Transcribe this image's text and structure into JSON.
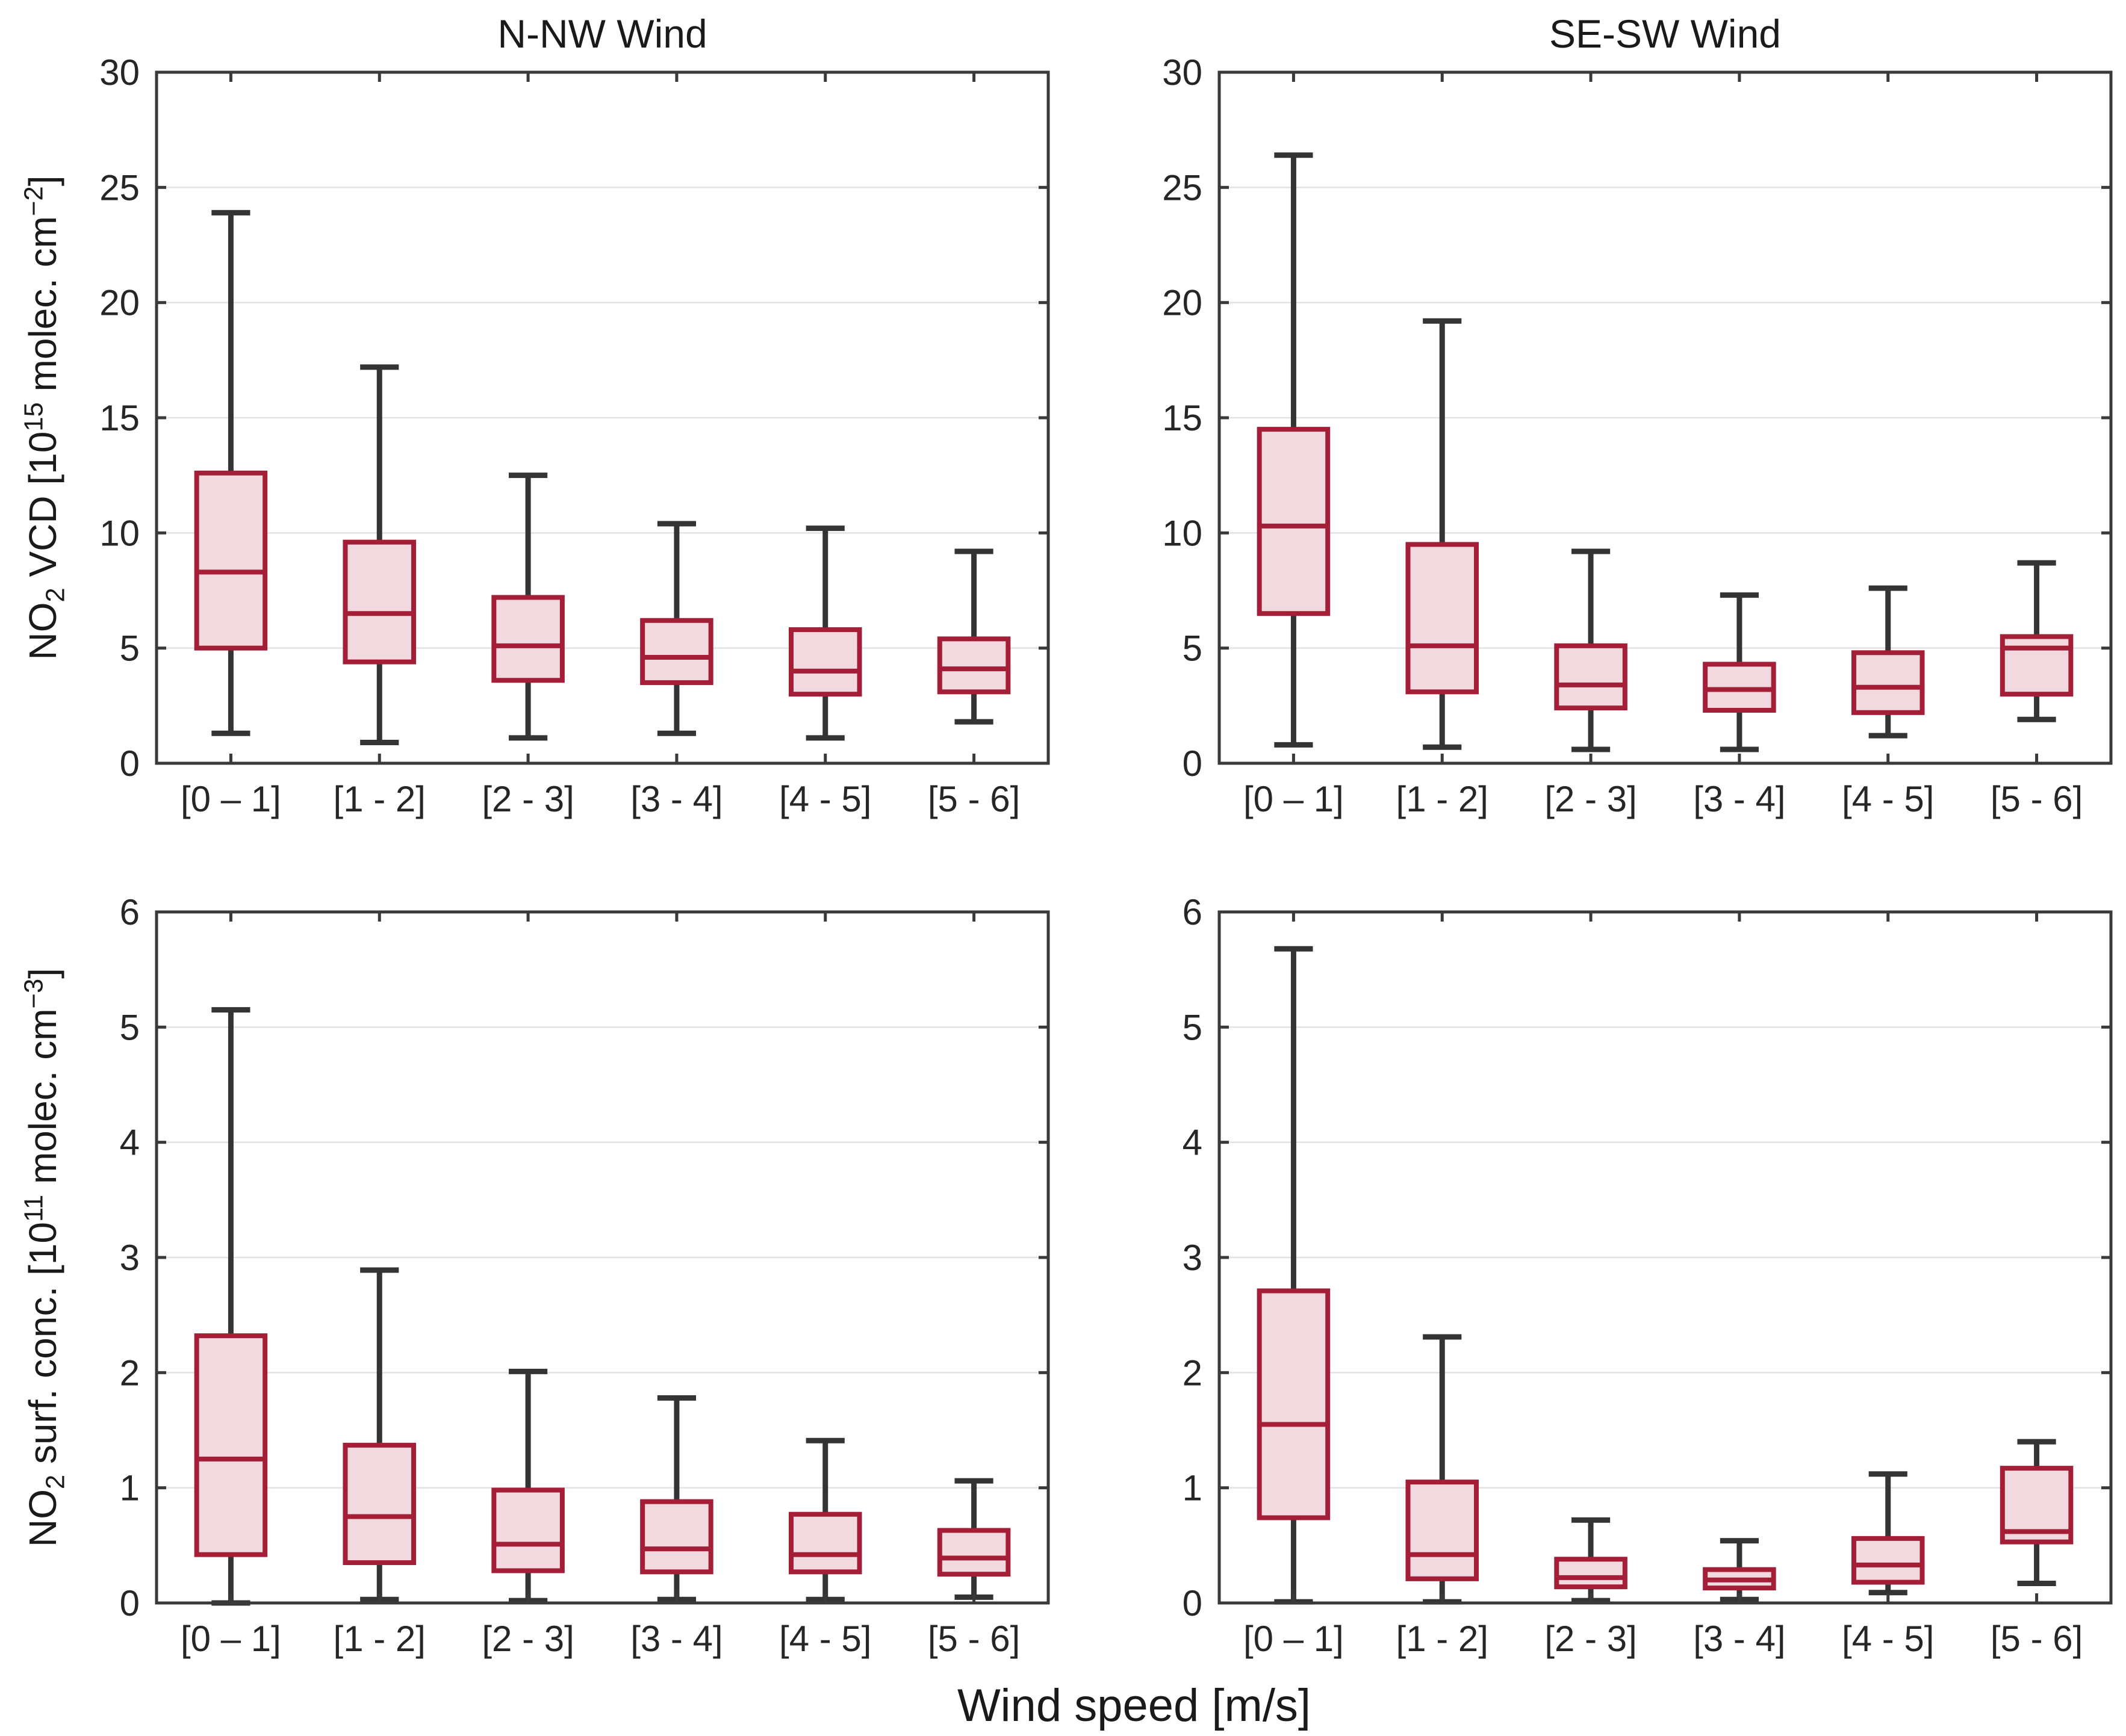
{
  "figure": {
    "xlabel": "Wind speed [m/s]",
    "ylabel_top": {
      "pre": "NO",
      "sub": "2",
      "mid": " VCD [10",
      "sup": "15",
      "tail": " molec. cm",
      "sup2": "−2",
      "end": "]"
    },
    "ylabel_bottom": {
      "pre": "NO",
      "sub": "2",
      "mid": " surf. conc. [10",
      "sup": "11",
      "tail": " molec. cm",
      "sup2": "−3",
      "end": "]"
    },
    "colors": {
      "box_stroke": "#a41e37",
      "box_fill": "#f1d9df",
      "whisker": "#343434",
      "grid": "#e2e2e2",
      "axis": "#3a3a3a",
      "text": "#1a1a1a"
    }
  },
  "chart_data": [
    {
      "type": "boxplot",
      "position": "top-left",
      "title": "N-NW Wind",
      "ylabel": "NO₂ VCD [10¹⁵ molec. cm⁻²]",
      "ylim": [
        0,
        30
      ],
      "yticks": [
        0,
        5,
        10,
        15,
        20,
        25,
        30
      ],
      "categories": [
        "[0 – 1]",
        "[1 - 2]",
        "[2 - 3]",
        "[3 - 4]",
        "[4 - 5]",
        "[5 - 6]"
      ],
      "boxes": [
        {
          "whisker_low": 1.3,
          "q1": 5.0,
          "median": 8.3,
          "q3": 12.6,
          "whisker_high": 23.9
        },
        {
          "whisker_low": 0.9,
          "q1": 4.4,
          "median": 6.5,
          "q3": 9.6,
          "whisker_high": 17.2
        },
        {
          "whisker_low": 1.1,
          "q1": 3.6,
          "median": 5.1,
          "q3": 7.2,
          "whisker_high": 12.5
        },
        {
          "whisker_low": 1.3,
          "q1": 3.5,
          "median": 4.6,
          "q3": 6.2,
          "whisker_high": 10.4
        },
        {
          "whisker_low": 1.1,
          "q1": 3.0,
          "median": 4.0,
          "q3": 5.8,
          "whisker_high": 10.2
        },
        {
          "whisker_low": 1.8,
          "q1": 3.1,
          "median": 4.1,
          "q3": 5.4,
          "whisker_high": 9.2
        }
      ]
    },
    {
      "type": "boxplot",
      "position": "top-right",
      "title": "SE-SW Wind",
      "ylabel": "NO₂ VCD [10¹⁵ molec. cm⁻²]",
      "ylim": [
        0,
        30
      ],
      "yticks": [
        0,
        5,
        10,
        15,
        20,
        25,
        30
      ],
      "categories": [
        "[0 – 1]",
        "[1 - 2]",
        "[2 - 3]",
        "[3 - 4]",
        "[4 - 5]",
        "[5 - 6]"
      ],
      "boxes": [
        {
          "whisker_low": 0.8,
          "q1": 6.5,
          "median": 10.3,
          "q3": 14.5,
          "whisker_high": 26.4
        },
        {
          "whisker_low": 0.7,
          "q1": 3.1,
          "median": 5.1,
          "q3": 9.5,
          "whisker_high": 19.2
        },
        {
          "whisker_low": 0.6,
          "q1": 2.4,
          "median": 3.4,
          "q3": 5.1,
          "whisker_high": 9.2
        },
        {
          "whisker_low": 0.6,
          "q1": 2.3,
          "median": 3.2,
          "q3": 4.3,
          "whisker_high": 7.3
        },
        {
          "whisker_low": 1.2,
          "q1": 2.2,
          "median": 3.3,
          "q3": 4.8,
          "whisker_high": 7.6
        },
        {
          "whisker_low": 1.9,
          "q1": 3.0,
          "median": 5.0,
          "q3": 5.5,
          "whisker_high": 8.7
        }
      ]
    },
    {
      "type": "boxplot",
      "position": "bottom-left",
      "title": "",
      "ylabel": "NO₂ surf. conc. [10¹¹ molec. cm⁻³]",
      "ylim": [
        0,
        6
      ],
      "yticks": [
        0,
        1,
        2,
        3,
        4,
        5,
        6
      ],
      "categories": [
        "[0 – 1]",
        "[1 - 2]",
        "[2 - 3]",
        "[3 - 4]",
        "[4 - 5]",
        "[5 - 6]"
      ],
      "boxes": [
        {
          "whisker_low": 0.0,
          "q1": 0.42,
          "median": 1.25,
          "q3": 2.32,
          "whisker_high": 5.15
        },
        {
          "whisker_low": 0.03,
          "q1": 0.35,
          "median": 0.75,
          "q3": 1.37,
          "whisker_high": 2.89
        },
        {
          "whisker_low": 0.02,
          "q1": 0.28,
          "median": 0.51,
          "q3": 0.98,
          "whisker_high": 2.01
        },
        {
          "whisker_low": 0.03,
          "q1": 0.27,
          "median": 0.47,
          "q3": 0.88,
          "whisker_high": 1.78
        },
        {
          "whisker_low": 0.03,
          "q1": 0.27,
          "median": 0.42,
          "q3": 0.77,
          "whisker_high": 1.41
        },
        {
          "whisker_low": 0.05,
          "q1": 0.25,
          "median": 0.39,
          "q3": 0.63,
          "whisker_high": 1.06
        }
      ]
    },
    {
      "type": "boxplot",
      "position": "bottom-right",
      "title": "",
      "ylabel": "NO₂ surf. conc. [10¹¹ molec. cm⁻³]",
      "ylim": [
        0,
        6
      ],
      "yticks": [
        0,
        1,
        2,
        3,
        4,
        5,
        6
      ],
      "categories": [
        "[0 – 1]",
        "[1 - 2]",
        "[2 - 3]",
        "[3 - 4]",
        "[4 - 5]",
        "[5 - 6]"
      ],
      "boxes": [
        {
          "whisker_low": 0.01,
          "q1": 0.74,
          "median": 1.55,
          "q3": 2.71,
          "whisker_high": 5.68
        },
        {
          "whisker_low": 0.01,
          "q1": 0.21,
          "median": 0.42,
          "q3": 1.05,
          "whisker_high": 2.31
        },
        {
          "whisker_low": 0.02,
          "q1": 0.14,
          "median": 0.22,
          "q3": 0.38,
          "whisker_high": 0.72
        },
        {
          "whisker_low": 0.03,
          "q1": 0.13,
          "median": 0.2,
          "q3": 0.29,
          "whisker_high": 0.54
        },
        {
          "whisker_low": 0.09,
          "q1": 0.18,
          "median": 0.33,
          "q3": 0.56,
          "whisker_high": 1.12
        },
        {
          "whisker_low": 0.17,
          "q1": 0.53,
          "median": 0.62,
          "q3": 1.17,
          "whisker_high": 1.4
        }
      ]
    }
  ]
}
